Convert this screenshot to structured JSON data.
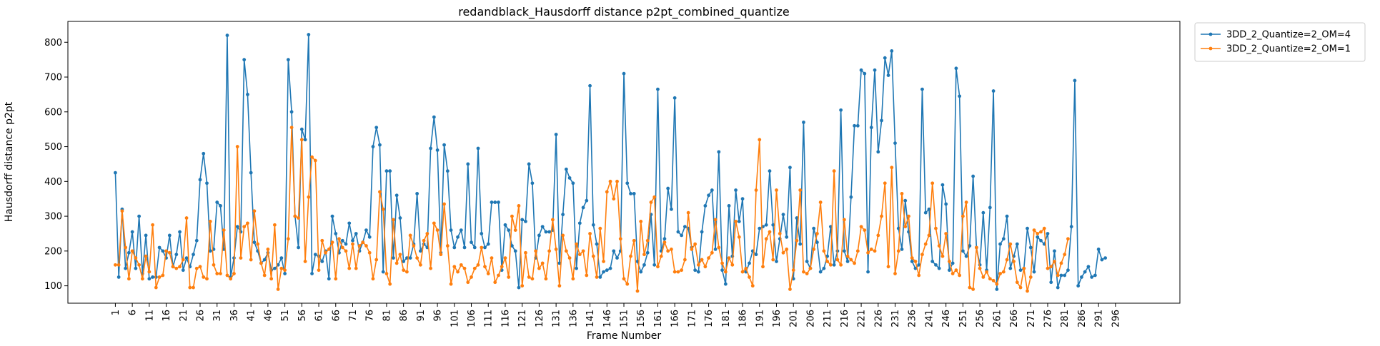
{
  "chart_data": {
    "type": "line",
    "title": "redandblack_Hausdorff distance p2pt_combined_quantize",
    "xlabel": "Frame Number",
    "ylabel": "Hausdorff distance p2pt",
    "xlim": [
      -13,
      315
    ],
    "ylim": [
      50,
      860
    ],
    "yticks": [
      100,
      200,
      300,
      400,
      500,
      600,
      700,
      800
    ],
    "xticks": [
      1,
      6,
      11,
      16,
      21,
      26,
      31,
      36,
      41,
      46,
      51,
      56,
      61,
      66,
      71,
      76,
      81,
      86,
      91,
      96,
      101,
      106,
      111,
      116,
      121,
      126,
      131,
      136,
      141,
      146,
      151,
      156,
      161,
      166,
      171,
      176,
      181,
      186,
      191,
      196,
      201,
      206,
      211,
      216,
      221,
      226,
      231,
      236,
      241,
      246,
      251,
      256,
      261,
      266,
      271,
      276,
      281,
      286,
      291,
      296
    ],
    "grid": false,
    "legend_position": "outside-top-right",
    "x_start": 1,
    "series": [
      {
        "name": "3DD_2_Quantize=2_OM=4",
        "color": "#1f77b4",
        "values": [
          425,
          125,
          320,
          150,
          195,
          255,
          150,
          300,
          135,
          245,
          120,
          125,
          125,
          210,
          200,
          180,
          245,
          155,
          190,
          255,
          145,
          180,
          155,
          190,
          230,
          405,
          480,
          395,
          200,
          205,
          340,
          330,
          205,
          820,
          125,
          180,
          270,
          255,
          750,
          650,
          425,
          225,
          200,
          165,
          175,
          195,
          145,
          150,
          160,
          180,
          135,
          750,
          600,
          300,
          210,
          550,
          520,
          822,
          135,
          190,
          185,
          170,
          200,
          120,
          300,
          250,
          195,
          230,
          220,
          280,
          230,
          250,
          200,
          225,
          260,
          240,
          500,
          555,
          505,
          140,
          430,
          430,
          180,
          360,
          295,
          170,
          180,
          180,
          220,
          365,
          200,
          220,
          210,
          495,
          585,
          490,
          195,
          505,
          430,
          260,
          210,
          240,
          260,
          210,
          450,
          225,
          210,
          495,
          250,
          210,
          220,
          340,
          340,
          340,
          145,
          275,
          260,
          215,
          200,
          95,
          290,
          285,
          450,
          395,
          180,
          245,
          270,
          255,
          255,
          260,
          535,
          165,
          305,
          435,
          410,
          395,
          150,
          280,
          325,
          345,
          675,
          275,
          220,
          125,
          140,
          145,
          150,
          200,
          180,
          200,
          710,
          395,
          365,
          365,
          170,
          140,
          160,
          195,
          305,
          160,
          665,
          200,
          235,
          380,
          320,
          640,
          255,
          245,
          270,
          265,
          210,
          145,
          140,
          255,
          330,
          360,
          375,
          205,
          485,
          145,
          105,
          330,
          185,
          375,
          285,
          350,
          140,
          165,
          200,
          190,
          265,
          270,
          275,
          430,
          275,
          170,
          235,
          305,
          240,
          440,
          120,
          295,
          220,
          570,
          170,
          150,
          265,
          225,
          140,
          150,
          185,
          270,
          160,
          200,
          605,
          200,
          170,
          355,
          560,
          560,
          720,
          710,
          140,
          555,
          720,
          485,
          575,
          755,
          705,
          775,
          510,
          265,
          205,
          345,
          255,
          170,
          150,
          160,
          665,
          310,
          320,
          170,
          160,
          150,
          390,
          335,
          145,
          165,
          725,
          645,
          200,
          185,
          215,
          415,
          210,
          160,
          310,
          145,
          325,
          660,
          90,
          220,
          235,
          300,
          150,
          185,
          220,
          145,
          150,
          265,
          210,
          140,
          240,
          230,
          220,
          250,
          110,
          200,
          95,
          130,
          130,
          145,
          270,
          690,
          100,
          125,
          140,
          155,
          125,
          130,
          205,
          175,
          180
        ]
      },
      {
        "name": "3DD_2_Quantize=2_OM=1",
        "color": "#ff7f0e",
        "values": [
          160,
          160,
          315,
          210,
          120,
          200,
          180,
          160,
          120,
          185,
          140,
          275,
          95,
          125,
          130,
          200,
          195,
          155,
          150,
          155,
          175,
          295,
          95,
          95,
          150,
          155,
          125,
          120,
          285,
          160,
          135,
          135,
          260,
          130,
          120,
          135,
          500,
          180,
          270,
          280,
          175,
          315,
          220,
          165,
          130,
          205,
          120,
          275,
          90,
          150,
          145,
          235,
          555,
          300,
          295,
          520,
          170,
          355,
          470,
          460,
          145,
          230,
          195,
          205,
          225,
          120,
          235,
          210,
          200,
          150,
          220,
          150,
          215,
          225,
          215,
          195,
          120,
          175,
          370,
          320,
          135,
          105,
          290,
          165,
          190,
          145,
          140,
          245,
          215,
          180,
          160,
          230,
          250,
          150,
          280,
          260,
          190,
          335,
          215,
          105,
          155,
          140,
          160,
          150,
          110,
          125,
          150,
          160,
          210,
          155,
          135,
          180,
          110,
          130,
          155,
          180,
          125,
          300,
          260,
          330,
          100,
          195,
          125,
          120,
          200,
          150,
          165,
          120,
          200,
          290,
          205,
          100,
          245,
          200,
          180,
          120,
          220,
          190,
          200,
          130,
          250,
          185,
          125,
          265,
          170,
          370,
          400,
          350,
          400,
          235,
          120,
          105,
          185,
          230,
          85,
          285,
          190,
          230,
          340,
          355,
          155,
          185,
          225,
          200,
          205,
          140,
          140,
          145,
          175,
          310,
          205,
          220,
          160,
          175,
          155,
          180,
          195,
          290,
          210,
          165,
          140,
          180,
          160,
          285,
          240,
          140,
          150,
          125,
          100,
          375,
          520,
          155,
          235,
          255,
          175,
          375,
          250,
          195,
          205,
          90,
          145,
          230,
          375,
          140,
          135,
          150,
          205,
          250,
          340,
          200,
          170,
          160,
          430,
          175,
          160,
          290,
          185,
          175,
          165,
          200,
          270,
          260,
          195,
          205,
          200,
          245,
          300,
          395,
          155,
          440,
          135,
          200,
          365,
          270,
          300,
          180,
          170,
          130,
          190,
          220,
          245,
          395,
          265,
          215,
          185,
          250,
          170,
          135,
          145,
          130,
          300,
          340,
          95,
          90,
          210,
          150,
          125,
          140,
          120,
          115,
          105,
          135,
          140,
          175,
          220,
          170,
          110,
          95,
          150,
          85,
          125,
          260,
          250,
          255,
          265,
          150,
          155,
          170,
          130,
          165,
          190,
          235
        ]
      }
    ]
  }
}
